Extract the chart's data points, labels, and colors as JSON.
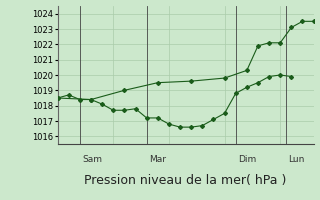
{
  "background_color": "#cce8cc",
  "grid_color": "#aaccaa",
  "line_color": "#1a5c1a",
  "ylim": [
    1015.5,
    1024.5
  ],
  "yticks": [
    1016,
    1017,
    1018,
    1019,
    1020,
    1021,
    1022,
    1023,
    1024
  ],
  "xlabel": "Pression niveau de la mer( hPa )",
  "xlabel_fontsize": 9,
  "series1_x": [
    0,
    1,
    2,
    3,
    4,
    5,
    6,
    7,
    8,
    9,
    10,
    11,
    12,
    13,
    14,
    15,
    16,
    17,
    18,
    19,
    20,
    21
  ],
  "series1_y": [
    1018.5,
    1018.7,
    1018.4,
    1018.4,
    1018.1,
    1017.7,
    1017.7,
    1017.8,
    1017.2,
    1017.2,
    1016.8,
    1016.6,
    1016.6,
    1016.7,
    1017.1,
    1017.5,
    1018.8,
    1019.2,
    1019.5,
    1019.9,
    1020.0,
    1019.9
  ],
  "series2_x": [
    0,
    3,
    6,
    9,
    12,
    15,
    17,
    18,
    19,
    20,
    21,
    22,
    23
  ],
  "series2_y": [
    1018.5,
    1018.4,
    1019.0,
    1019.5,
    1019.6,
    1019.8,
    1020.3,
    1021.9,
    1022.1,
    1022.1,
    1023.1,
    1023.5,
    1023.5
  ],
  "vline_positions": [
    2.0,
    8.0,
    16.0,
    20.5
  ],
  "vline_labels": [
    "Sam",
    "Mar",
    "Dim",
    "Lun"
  ],
  "plot_xlim": [
    0,
    23
  ],
  "figsize": [
    3.2,
    2.0
  ],
  "dpi": 100
}
